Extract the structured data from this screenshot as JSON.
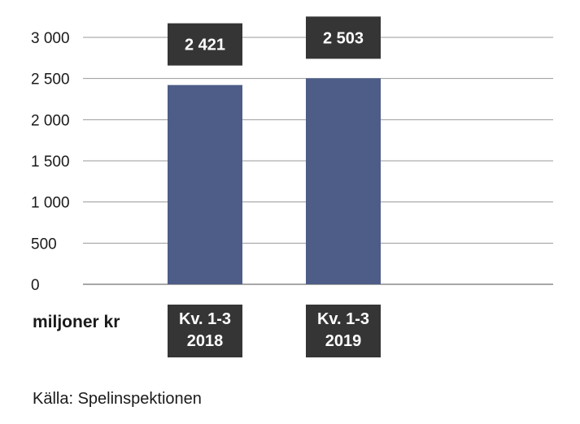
{
  "chart_data": {
    "type": "bar",
    "categories": [
      "Kv. 1-3 2018",
      "Kv. 1-3 2019"
    ],
    "category_lines": [
      [
        "Kv. 1-3",
        "2018"
      ],
      [
        "Kv. 1-3",
        "2019"
      ]
    ],
    "values": [
      2421,
      2503
    ],
    "value_labels": [
      "2 421",
      "2 503"
    ],
    "ylim": [
      0,
      3000
    ],
    "yticks": [
      0,
      500,
      1000,
      1500,
      2000,
      2500,
      3000
    ],
    "ytick_labels": [
      "0",
      "500",
      "1 000",
      "1 500",
      "2 000",
      "2 500",
      "3 000"
    ],
    "ylabel": "miljoner kr",
    "grid": true,
    "colors": {
      "bar": "#4d5d88",
      "label_box": "#353535",
      "grid": "#9a9a9a"
    }
  },
  "unit_label": "miljoner kr",
  "source": "Källa: Spelinspektionen"
}
